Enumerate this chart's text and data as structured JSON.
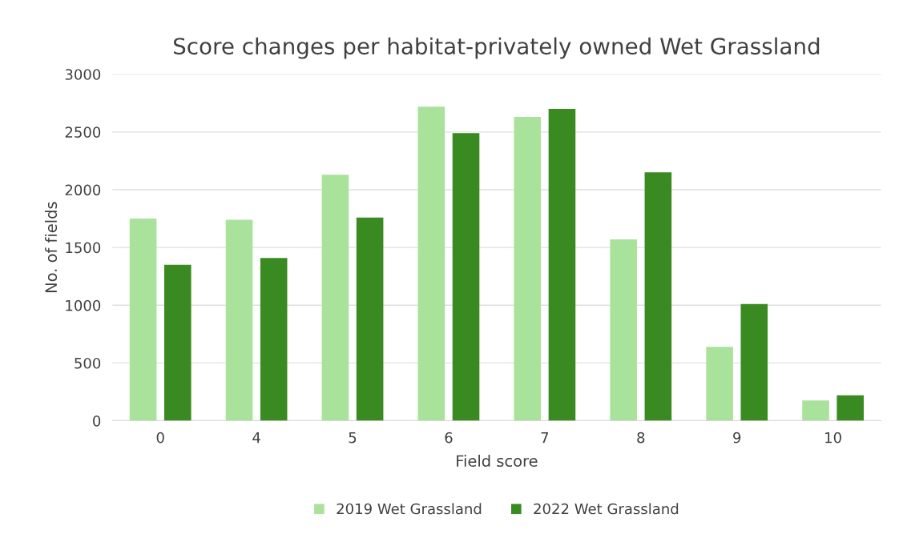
{
  "chart_data": {
    "type": "bar",
    "title": "Score changes per habitat-privately owned Wet Grassland",
    "xlabel": "Field score",
    "ylabel": "No. of fields",
    "categories": [
      "0",
      "4",
      "5",
      "6",
      "7",
      "8",
      "9",
      "10"
    ],
    "series": [
      {
        "name": "2019 Wet Grassland",
        "color": "#a9e29a",
        "values": [
          1750,
          1740,
          2130,
          2720,
          2630,
          1570,
          640,
          175
        ]
      },
      {
        "name": "2022 Wet Grassland",
        "color": "#3a8a22",
        "values": [
          1350,
          1410,
          1760,
          2490,
          2700,
          2150,
          1010,
          220
        ]
      }
    ],
    "ylim": [
      0,
      3000
    ],
    "yticks": [
      0,
      500,
      1000,
      1500,
      2000,
      2500,
      3000
    ],
    "grid": "y",
    "legend": "bottom"
  }
}
